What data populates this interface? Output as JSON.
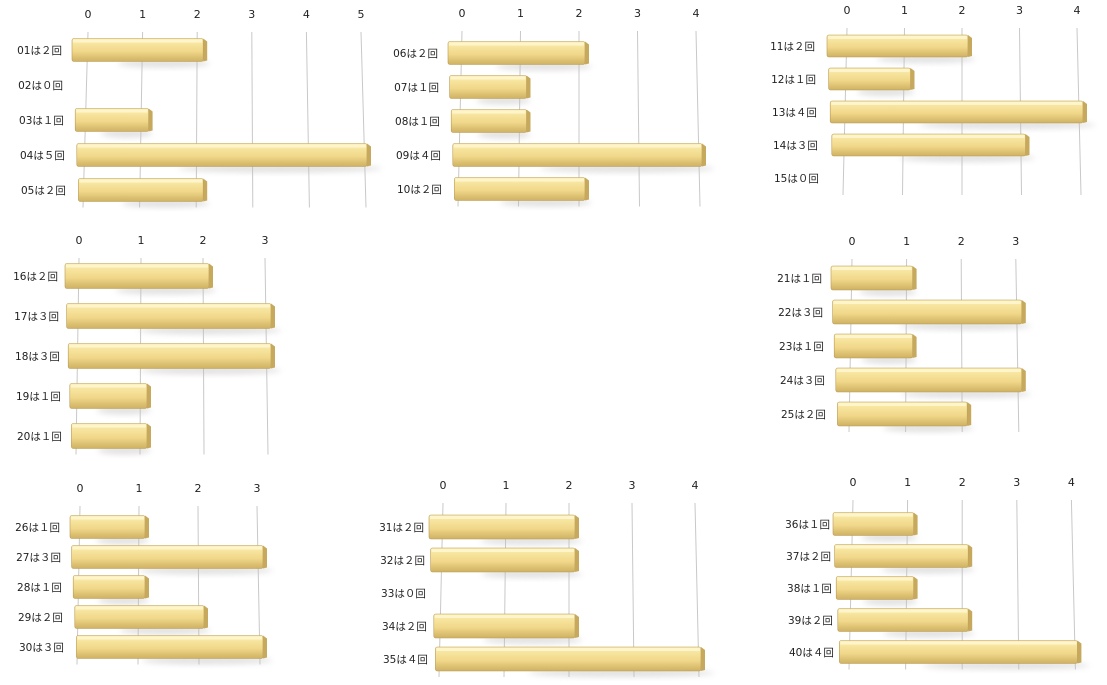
{
  "colors": {
    "bar_light": "#fbeeae",
    "bar_mid": "#f1d88a",
    "bar_dark": "#cfb163",
    "grid": "#c8c8c8"
  },
  "chart_data": [
    {
      "type": "bar",
      "orientation": "horizontal",
      "grid": true,
      "categories": [
        "01は２回",
        "02は０回",
        "03は１回",
        "04は５回",
        "05は２回"
      ],
      "values": [
        2,
        0,
        1,
        5,
        2
      ],
      "xticks": [
        "0",
        "1",
        "2",
        "3",
        "4",
        "5"
      ],
      "xlim": [
        0,
        5
      ]
    },
    {
      "type": "bar",
      "orientation": "horizontal",
      "grid": true,
      "categories": [
        "06は２回",
        "07は１回",
        "08は１回",
        "09は４回",
        "10は２回"
      ],
      "values": [
        2,
        1,
        1,
        4,
        2
      ],
      "xticks": [
        "0",
        "1",
        "2",
        "3",
        "4"
      ],
      "xlim": [
        0,
        4
      ]
    },
    {
      "type": "bar",
      "orientation": "horizontal",
      "grid": true,
      "categories": [
        "11は２回",
        "12は１回",
        "13は４回",
        "14は３回",
        "15は０回"
      ],
      "values": [
        2,
        1,
        4,
        3,
        0
      ],
      "xticks": [
        "0",
        "1",
        "2",
        "3",
        "4"
      ],
      "xlim": [
        0,
        4
      ]
    },
    {
      "type": "bar",
      "orientation": "horizontal",
      "grid": true,
      "categories": [
        "16は２回",
        "17は３回",
        "18は３回",
        "19は１回",
        "20は１回"
      ],
      "values": [
        2,
        3,
        3,
        1,
        1
      ],
      "xticks": [
        "0",
        "1",
        "2",
        "3"
      ],
      "xlim": [
        0,
        3
      ]
    },
    {
      "type": "bar",
      "orientation": "horizontal",
      "grid": true,
      "categories": [
        "21は１回",
        "22は３回",
        "23は１回",
        "24は３回",
        "25は２回"
      ],
      "values": [
        1,
        3,
        1,
        3,
        2
      ],
      "xticks": [
        "0",
        "1",
        "2",
        "3"
      ],
      "xlim": [
        0,
        3
      ]
    },
    {
      "type": "bar",
      "orientation": "horizontal",
      "grid": true,
      "categories": [
        "26は１回",
        "27は３回",
        "28は１回",
        "29は２回",
        "30は３回"
      ],
      "values": [
        1,
        3,
        1,
        2,
        3
      ],
      "xticks": [
        "0",
        "1",
        "2",
        "3"
      ],
      "xlim": [
        0,
        3
      ]
    },
    {
      "type": "bar",
      "orientation": "horizontal",
      "grid": true,
      "categories": [
        "31は２回",
        "32は２回",
        "33は０回",
        "34は２回",
        "35は４回"
      ],
      "values": [
        2,
        2,
        0,
        2,
        4
      ],
      "xticks": [
        "0",
        "1",
        "2",
        "3",
        "4"
      ],
      "xlim": [
        0,
        4
      ]
    },
    {
      "type": "bar",
      "orientation": "horizontal",
      "grid": true,
      "categories": [
        "36は１回",
        "37は２回",
        "38は１回",
        "39は２回",
        "40は４回"
      ],
      "values": [
        1,
        2,
        1,
        2,
        4
      ],
      "xticks": [
        "0",
        "1",
        "2",
        "3",
        "4"
      ],
      "xlim": [
        0,
        4
      ]
    }
  ]
}
